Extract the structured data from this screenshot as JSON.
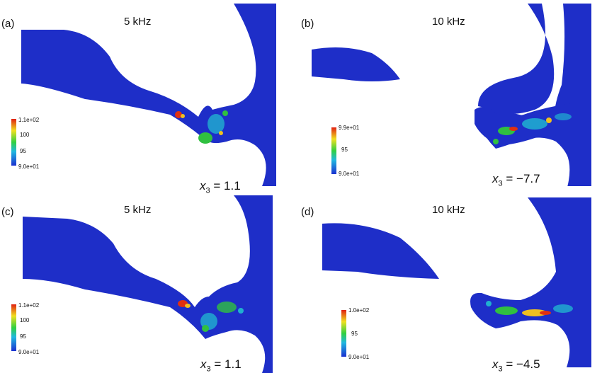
{
  "panels": [
    {
      "label": "(a)",
      "frequency": "5  kHz",
      "coord_var": "x",
      "coord_sub": "3",
      "coord_value": "= 1.1",
      "colorbar": {
        "max": "1.1e+02",
        "mid1": "100",
        "mid2": "95",
        "min": "9.0e+01"
      }
    },
    {
      "label": "(b)",
      "frequency": "10 kHz",
      "coord_var": "x",
      "coord_sub": "3",
      "coord_value": "= −7.7",
      "colorbar": {
        "max": "9.9e+01",
        "mid1": "95",
        "min": "9.0e+01"
      }
    },
    {
      "label": "(c)",
      "frequency": "5  kHz",
      "coord_var": "x",
      "coord_sub": "3",
      "coord_value": "= 1.1",
      "colorbar": {
        "max": "1.1e+02",
        "mid1": "100",
        "mid2": "95",
        "min": "9.0e+01"
      }
    },
    {
      "label": "(d)",
      "frequency": "10 kHz",
      "coord_var": "x",
      "coord_sub": "3",
      "coord_value": "= −4.5",
      "colorbar": {
        "max": "1.0e+02",
        "mid1": "95",
        "min": "9.0e+01"
      }
    }
  ],
  "colors": {
    "field": "#1e2ec8",
    "hot": "#e03010",
    "warm": "#f0c020",
    "mid": "#30c040",
    "cool": "#20b0d0"
  }
}
